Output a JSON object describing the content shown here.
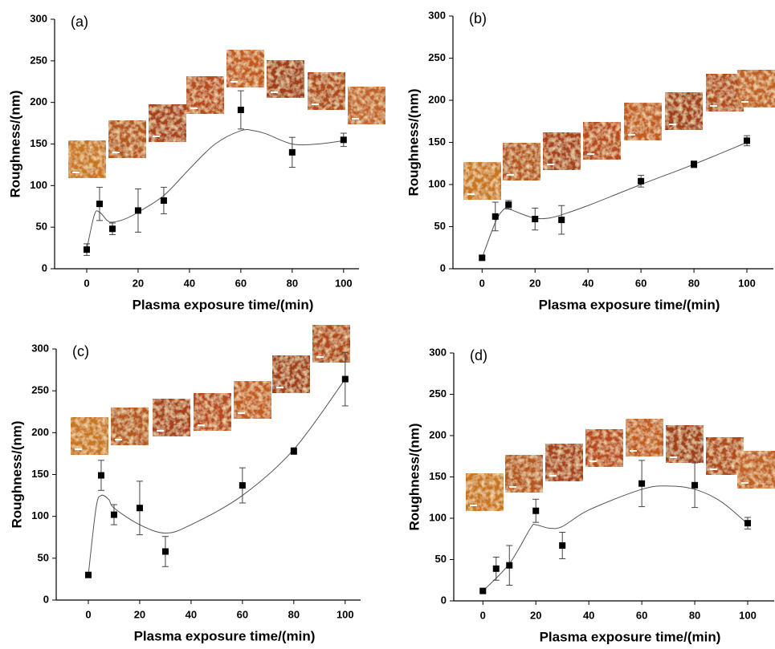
{
  "chart_data": [
    {
      "type": "scatter",
      "label": "(a)",
      "x_label": "Plasma exposure time/(min)",
      "y_label": "Roughness/(nm)",
      "color": "#000000",
      "x": [
        0,
        5,
        10,
        20,
        30,
        60,
        80,
        100
      ],
      "values": [
        23,
        78,
        48,
        70,
        82,
        191,
        140,
        155
      ],
      "errors": [
        7,
        20,
        7,
        26,
        16,
        23,
        18,
        8
      ],
      "curve": {
        "x": [
          0,
          3,
          5,
          8,
          10,
          15,
          20,
          30,
          40,
          50,
          60,
          65,
          70,
          80,
          90,
          100
        ],
        "values": [
          23,
          65,
          68,
          58,
          56,
          60,
          68,
          88,
          120,
          150,
          166,
          166,
          162,
          150,
          150,
          154
        ]
      },
      "xlim": [
        -12.5,
        106
      ],
      "ylim": [
        0,
        300
      ],
      "xticks": [
        0,
        20,
        40,
        60,
        80,
        100
      ],
      "yticks": [
        0,
        50,
        100,
        150,
        200,
        250,
        300
      ]
    },
    {
      "type": "scatter",
      "label": "(b)",
      "x_label": "Plasma exposure time/(min)",
      "y_label": "Roughness/(nm)",
      "color": "#000000",
      "x": [
        0,
        5,
        10,
        20,
        30,
        60,
        80,
        100
      ],
      "values": [
        13,
        62,
        76,
        59,
        58,
        104,
        124,
        152
      ],
      "errors": [
        2,
        17,
        5,
        13,
        17,
        7,
        4,
        6
      ],
      "curve": {
        "x": [
          0,
          5,
          8,
          10,
          15,
          20,
          25,
          30,
          40,
          60,
          80,
          100
        ],
        "values": [
          13,
          55,
          70,
          71,
          65,
          60,
          60,
          64,
          75,
          100,
          124,
          150
        ]
      },
      "xlim": [
        -11,
        110
      ],
      "ylim": [
        0,
        300
      ],
      "xticks": [
        0,
        20,
        40,
        60,
        80,
        100
      ],
      "yticks": [
        0,
        50,
        100,
        150,
        200,
        250,
        300
      ]
    },
    {
      "type": "scatter",
      "label": "(c)",
      "x_label": "Plasma exposure time/(min)",
      "y_label": "Roughness/(nm)",
      "color": "#000000",
      "x": [
        0,
        5,
        10,
        20,
        30,
        60,
        80,
        100
      ],
      "values": [
        30,
        149,
        102,
        110,
        58,
        137,
        178,
        264
      ],
      "errors": [
        2,
        18,
        12,
        32,
        18,
        21,
        4,
        32
      ],
      "curve": {
        "x": [
          0,
          3,
          5,
          8,
          10,
          20,
          30,
          40,
          60,
          80,
          100
        ],
        "values": [
          30,
          110,
          125,
          120,
          110,
          90,
          80,
          90,
          125,
          180,
          264
        ]
      },
      "xlim": [
        -12.5,
        106
      ],
      "ylim": [
        0,
        300
      ],
      "xticks": [
        0,
        20,
        40,
        60,
        80,
        100
      ],
      "yticks": [
        0,
        50,
        100,
        150,
        200,
        250,
        300
      ]
    },
    {
      "type": "scatter",
      "label": "(d)",
      "x_label": "Plasma exposure time/(min)",
      "y_label": "Roughness/(nm)",
      "color": "#000000",
      "x": [
        0,
        5,
        10,
        20,
        30,
        60,
        80,
        100
      ],
      "values": [
        12,
        39,
        43,
        109,
        67,
        142,
        140,
        94
      ],
      "errors": [
        2,
        14,
        24,
        14,
        16,
        28,
        27,
        7
      ],
      "curve": {
        "x": [
          0,
          10,
          18,
          20,
          25,
          30,
          40,
          60,
          70,
          80,
          90,
          100
        ],
        "values": [
          12,
          45,
          88,
          92,
          88,
          90,
          110,
          135,
          139,
          135,
          120,
          93
        ]
      },
      "xlim": [
        -11,
        110
      ],
      "ylim": [
        0,
        300
      ],
      "xticks": [
        0,
        20,
        40,
        60,
        80,
        100
      ],
      "yticks": [
        0,
        50,
        100,
        150,
        200,
        250,
        300
      ]
    }
  ]
}
